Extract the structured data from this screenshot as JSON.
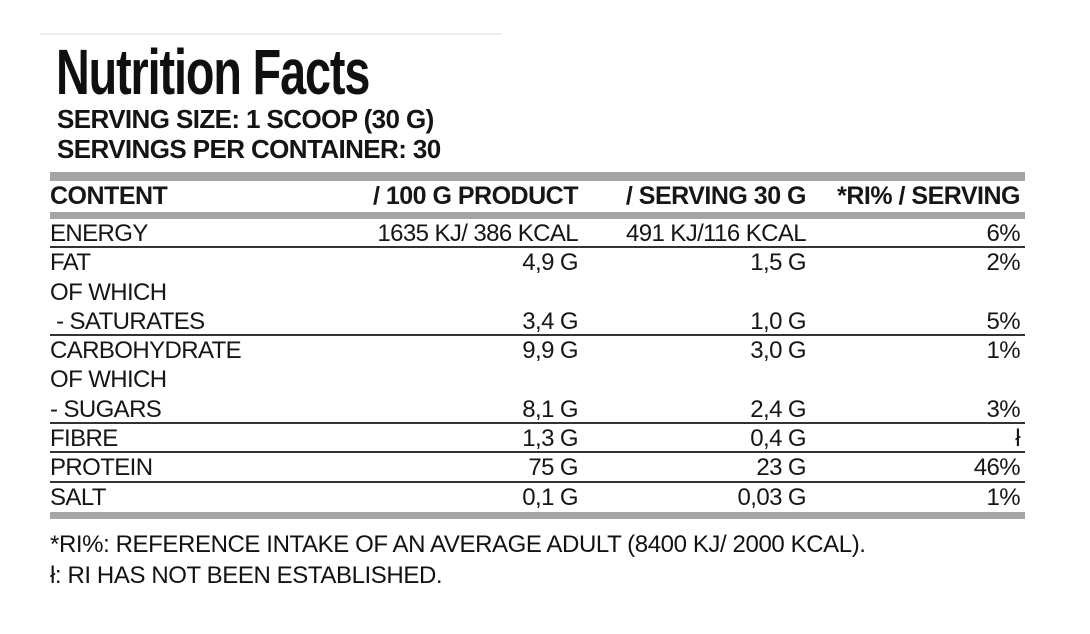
{
  "label": {
    "title": "Nutrition Facts",
    "serving_size_line": "SERVING SIZE: 1 SCOOP (30 G)",
    "servings_per_container_line": "SERVINGS PER CONTAINER: 30"
  },
  "table": {
    "headers": [
      "CONTENT",
      "/ 100 G PRODUCT",
      "/ SERVING 30 G",
      "*RI% / SERVING"
    ],
    "rows": [
      {
        "name": "ENERGY",
        "per_100g": "1635 KJ/ 386 KCAL",
        "per_serving": "491 KJ/116 KCAL",
        "ri_pct": "6%"
      },
      {
        "name": "FAT",
        "per_100g": "4,9 G",
        "per_serving": "1,5 G",
        "ri_pct": "2%"
      },
      {
        "name": "OF WHICH",
        "per_100g": "",
        "per_serving": "",
        "ri_pct": ""
      },
      {
        "name": " - SATURATES",
        "per_100g": "3,4 G",
        "per_serving": "1,0 G",
        "ri_pct": "5%"
      },
      {
        "name": "CARBOHYDRATE",
        "per_100g": "9,9 G",
        "per_serving": "3,0 G",
        "ri_pct": "1%"
      },
      {
        "name": "OF WHICH",
        "per_100g": "",
        "per_serving": "",
        "ri_pct": ""
      },
      {
        "name": "- SUGARS",
        "per_100g": "8,1 G",
        "per_serving": "2,4 G",
        "ri_pct": "3%"
      },
      {
        "name": "FIBRE",
        "per_100g": "1,3 G",
        "per_serving": "0,4 G",
        "ri_pct": "ł"
      },
      {
        "name": "PROTEIN",
        "per_100g": "75 G",
        "per_serving": "23 G",
        "ri_pct": "46%"
      },
      {
        "name": "SALT",
        "per_100g": "0,1 G",
        "per_serving": "0,03 G",
        "ri_pct": "1%"
      }
    ]
  },
  "footnotes": {
    "ri_note": "*RI%: REFERENCE INTAKE OF AN AVERAGE ADULT (8400 KJ/ 2000 KCAL).",
    "not_established_note": "ł: RI HAS NOT BEEN ESTABLISHED."
  },
  "colors": {
    "bar_gray": "#a5a5a5",
    "divider": "#333333",
    "text": "#161616",
    "background": "#ffffff"
  }
}
